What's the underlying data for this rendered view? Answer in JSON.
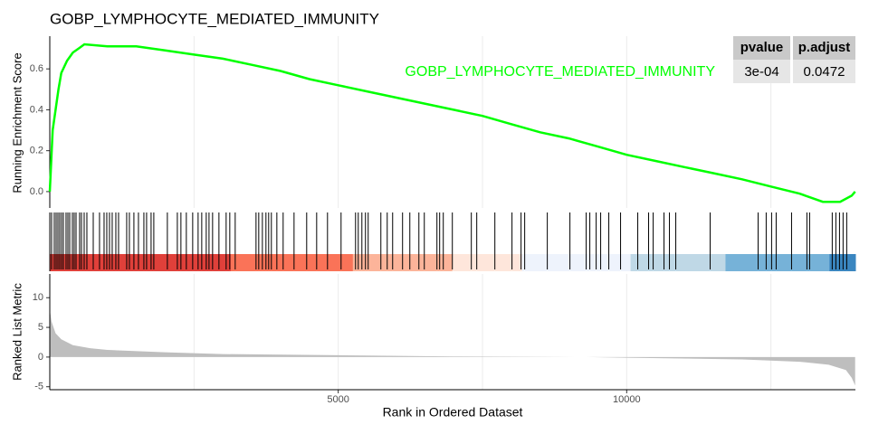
{
  "chart_data": [
    {
      "type": "line",
      "title": "GOBP_LYMPHOCYTE_MEDIATED_IMMUNITY",
      "ylabel": "Running Enrichment Score",
      "xlim": [
        0,
        13965
      ],
      "ylim": [
        -0.08,
        0.76
      ],
      "yticks": [
        {
          "value": 0,
          "label": "0.0"
        },
        0.2,
        0.4,
        0.6
      ],
      "xgrid": [
        2500,
        5000,
        7500,
        10000,
        12500
      ],
      "series": [
        {
          "name": "GOBP_LYMPHOCYTE_MEDIATED_IMMUNITY",
          "color": "#00FF00",
          "x": [
            0,
            50,
            100,
            150,
            200,
            300,
            400,
            500,
            600,
            1000,
            1500,
            2000,
            2500,
            3000,
            3500,
            4000,
            4500,
            5000,
            5500,
            6000,
            6500,
            7000,
            7500,
            8000,
            8500,
            9000,
            9500,
            10000,
            10500,
            11000,
            11500,
            12000,
            12500,
            13000,
            13400,
            13700,
            13900,
            13960
          ],
          "values": [
            0,
            0.3,
            0.4,
            0.5,
            0.58,
            0.64,
            0.68,
            0.7,
            0.72,
            0.71,
            0.71,
            0.69,
            0.67,
            0.65,
            0.62,
            0.59,
            0.55,
            0.52,
            0.49,
            0.46,
            0.43,
            0.4,
            0.37,
            0.33,
            0.29,
            0.26,
            0.22,
            0.18,
            0.15,
            0.12,
            0.09,
            0.06,
            0.025,
            -0.01,
            -0.05,
            -0.05,
            -0.02,
            0
          ]
        }
      ],
      "table": {
        "columns": [
          "pvalue",
          "p.adjust"
        ],
        "rows": [
          [
            "3e-04",
            "0.0472"
          ]
        ]
      }
    },
    {
      "type": "rug",
      "xlim": [
        0,
        13965
      ],
      "hits": [
        31,
        78,
        110,
        141,
        172,
        204,
        235,
        282,
        314,
        345,
        392,
        423,
        455,
        517,
        549,
        596,
        643,
        753,
        862,
        941,
        988,
        1035,
        1082,
        1145,
        1192,
        1333,
        1380,
        1458,
        1537,
        1631,
        1678,
        1756,
        1803,
        2038,
        2211,
        2273,
        2367,
        2477,
        2571,
        2634,
        2712,
        2760,
        2822,
        2932,
        3057,
        3120,
        3214,
        3575,
        3622,
        3685,
        3747,
        3794,
        3841,
        3936,
        4045,
        4234,
        4453,
        4626,
        4814,
        5049,
        5300,
        5347,
        5410,
        5472,
        5519,
        5739,
        5849,
        5943,
        6115,
        6241,
        6398,
        6492,
        6711,
        6758,
        6821,
        6978,
        7307,
        7401,
        7715,
        8012,
        8169,
        8232,
        8624,
        9016,
        9298,
        9361,
        9471,
        9549,
        9690,
        9894,
        10192,
        10380,
        10459,
        10647,
        10741,
        10851,
        11447,
        12278,
        12418,
        12512,
        12591,
        12858,
        13124,
        13171,
        13563,
        13626,
        13689,
        13751,
        13814
      ],
      "bands": [
        {
          "start": 0,
          "end": 3136,
          "color": "#E0403A"
        },
        {
          "start": 3136,
          "end": 5253,
          "color": "#FA7358"
        },
        {
          "start": 5253,
          "end": 6978,
          "color": "#FCB49A"
        },
        {
          "start": 6978,
          "end": 8185,
          "color": "#FEE6DB"
        },
        {
          "start": 8185,
          "end": 10067,
          "color": "#EEF3FC"
        },
        {
          "start": 10067,
          "end": 11713,
          "color": "#BFD8E6"
        },
        {
          "start": 11713,
          "end": 13516,
          "color": "#76B2D8"
        },
        {
          "start": 13516,
          "end": 13965,
          "color": "#3A86C0"
        }
      ]
    },
    {
      "type": "area",
      "ylabel": "Ranked List Metric",
      "xlabel": "Rank in Ordered Dataset",
      "color": "#BEBEBE",
      "xlim": [
        0,
        13965
      ],
      "ylim": [
        -5.5,
        14
      ],
      "yticks": [
        -5,
        0,
        5,
        10
      ],
      "xticks": [
        5000,
        10000
      ],
      "xgrid": [
        2500,
        5000,
        7500,
        10000,
        12500
      ],
      "x": [
        0,
        30,
        100,
        200,
        400,
        700,
        1000,
        2000,
        3000,
        5000,
        7000,
        8800,
        9300,
        10000,
        12000,
        13000,
        13500,
        13800,
        13900,
        13960
      ],
      "values": [
        8,
        6,
        4,
        3,
        2,
        1.5,
        1.2,
        0.8,
        0.5,
        0.3,
        0.1,
        0.02,
        0,
        -0.1,
        -0.4,
        -0.8,
        -1.3,
        -2.2,
        -3.5,
        -4.8
      ]
    }
  ]
}
